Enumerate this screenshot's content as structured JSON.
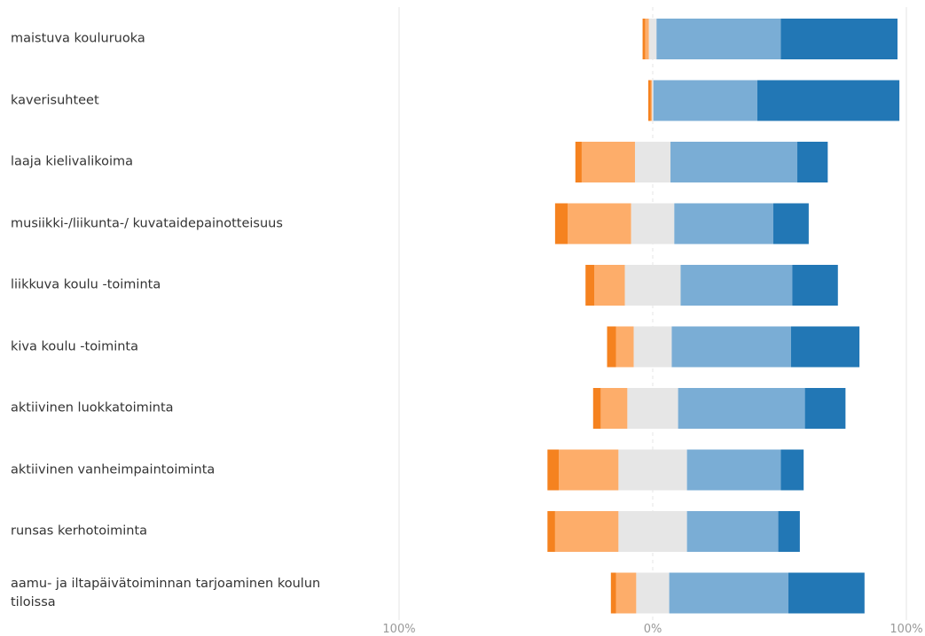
{
  "chart_data": {
    "type": "diverging_bar",
    "categories": [
      "maistuva kouluruoka",
      "kaverisuhteet",
      "laaja kielivalikoima",
      "musiikki-/liikunta-/ kuvataidepainotteisuus",
      "liikkuva koulu -toiminta",
      "kiva koulu -toiminta",
      "aktiivinen luokkatoiminta",
      "aktiivinen vanheimpaintoiminta",
      "runsas kerhotoiminta",
      "aamu- ja iltapäivätoiminnan tarjoaminen koulun tiloissa"
    ],
    "series": [
      {
        "color": "#f5821f",
        "values": [
          1,
          1,
          2.5,
          5,
          3.5,
          3.5,
          3,
          4.5,
          3,
          2
        ]
      },
      {
        "color": "#fdad6a",
        "values": [
          1.5,
          0.5,
          21,
          25,
          12,
          7,
          10.5,
          23.5,
          25,
          8
        ]
      },
      {
        "color": "#e6e6e6",
        "values": [
          3,
          0.5,
          14,
          17,
          22,
          15,
          20,
          27,
          27,
          13
        ]
      },
      {
        "color": "#7aadd5",
        "values": [
          49,
          41,
          50,
          39,
          44,
          47,
          50,
          37,
          36,
          47
        ]
      },
      {
        "color": "#2277b5",
        "values": [
          46,
          56,
          12,
          14,
          18,
          27,
          16,
          9,
          8.5,
          30
        ]
      }
    ],
    "xlim": [
      -100,
      100
    ],
    "xticks": [
      {
        "value": -100,
        "label": "100%"
      },
      {
        "value": 0,
        "label": "0%"
      },
      {
        "value": 100,
        "label": "100%"
      }
    ]
  }
}
